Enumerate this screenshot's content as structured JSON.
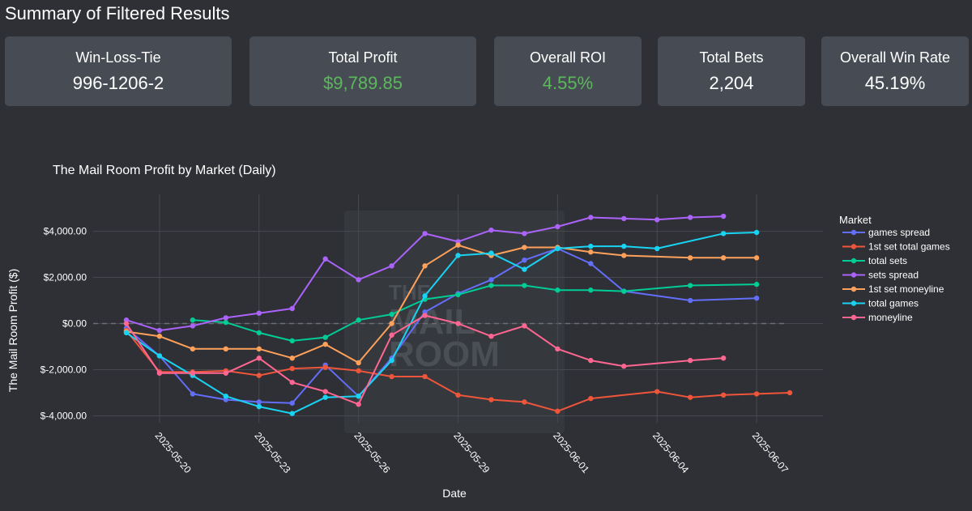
{
  "header": {
    "title": "Summary of Filtered Results"
  },
  "cards": [
    {
      "label": "Win-Loss-Tie",
      "value": "996-1206-2",
      "positive": false
    },
    {
      "label": "Total Profit",
      "value": "$9,789.85",
      "positive": true
    },
    {
      "label": "Overall ROI",
      "value": "4.55%",
      "positive": true
    },
    {
      "label": "Total Bets",
      "value": "2,204",
      "positive": false
    },
    {
      "label": "Overall Win Rate",
      "value": "45.19%",
      "positive": false
    }
  ],
  "colors": {
    "positive": "#5cb85c",
    "card_bg": "#474c54",
    "page_bg": "#2e3035"
  },
  "watermark": {
    "lines": [
      "THE",
      "MAIL",
      "ROOM"
    ]
  },
  "chart_data": {
    "type": "line",
    "title": "The Mail Room Profit by Market (Daily)",
    "xlabel": "Date",
    "ylabel": "The Mail Room Profit ($)",
    "legend_title": "Market",
    "ylim": [
      -4300,
      5600
    ],
    "xlim": [
      "2025-05-18",
      "2025-06-09"
    ],
    "yticks": [
      -4000,
      -2000,
      0,
      2000,
      4000
    ],
    "ytick_labels": [
      "$-4,000.00",
      "$-2,000.00",
      "$0.00",
      "$2,000.00",
      "$4,000.00"
    ],
    "xticks": [
      "2025-05-20",
      "2025-05-23",
      "2025-05-26",
      "2025-05-29",
      "2025-06-01",
      "2025-06-04",
      "2025-06-07"
    ],
    "zero_line": true,
    "series": [
      {
        "name": "games spread",
        "color": "#636efa",
        "x": [
          "2025-05-19",
          "2025-05-20",
          "2025-05-21",
          "2025-05-22",
          "2025-05-23",
          "2025-05-24",
          "2025-05-25",
          "2025-05-26",
          "2025-05-27",
          "2025-05-28",
          "2025-05-29",
          "2025-05-30",
          "2025-05-31",
          "2025-06-01",
          "2025-06-02",
          "2025-06-03",
          "2025-06-05",
          "2025-06-07"
        ],
        "y": [
          -200,
          -1400,
          -3050,
          -3300,
          -3400,
          -3450,
          -1800,
          -3150,
          -1500,
          500,
          1300,
          1900,
          2750,
          3250,
          2600,
          1400,
          1000,
          1100
        ]
      },
      {
        "name": "1st set total games",
        "color": "#ef553b",
        "x": [
          "2025-05-19",
          "2025-05-20",
          "2025-05-21",
          "2025-05-22",
          "2025-05-23",
          "2025-05-24",
          "2025-05-25",
          "2025-05-26",
          "2025-05-27",
          "2025-05-28",
          "2025-05-29",
          "2025-05-30",
          "2025-05-31",
          "2025-06-01",
          "2025-06-02",
          "2025-06-04",
          "2025-06-05",
          "2025-06-06",
          "2025-06-07",
          "2025-06-08"
        ],
        "y": [
          -300,
          -2100,
          -2100,
          -2050,
          -2250,
          -1950,
          -1900,
          -2050,
          -2300,
          -2300,
          -3100,
          -3300,
          -3400,
          -3800,
          -3250,
          -2950,
          -3200,
          -3100,
          -3050,
          -3000
        ]
      },
      {
        "name": "total sets",
        "color": "#00cc96",
        "x": [
          "2025-05-21",
          "2025-05-22",
          "2025-05-23",
          "2025-05-24",
          "2025-05-25",
          "2025-05-26",
          "2025-05-27",
          "2025-05-28",
          "2025-05-29",
          "2025-05-30",
          "2025-05-31",
          "2025-06-01",
          "2025-06-02",
          "2025-06-03",
          "2025-06-05",
          "2025-06-07"
        ],
        "y": [
          150,
          50,
          -400,
          -750,
          -600,
          150,
          400,
          1050,
          1250,
          1650,
          1650,
          1450,
          1450,
          1400,
          1650,
          1700
        ]
      },
      {
        "name": "sets spread",
        "color": "#ab63fa",
        "x": [
          "2025-05-19",
          "2025-05-20",
          "2025-05-21",
          "2025-05-22",
          "2025-05-23",
          "2025-05-24",
          "2025-05-25",
          "2025-05-26",
          "2025-05-27",
          "2025-05-28",
          "2025-05-29",
          "2025-05-30",
          "2025-05-31",
          "2025-06-01",
          "2025-06-02",
          "2025-06-03",
          "2025-06-04",
          "2025-06-05",
          "2025-06-06"
        ],
        "y": [
          150,
          -300,
          -100,
          250,
          450,
          650,
          2800,
          1900,
          2500,
          3900,
          3550,
          4050,
          3900,
          4200,
          4600,
          4550,
          4500,
          4600,
          4650
        ]
      },
      {
        "name": "1st set moneyline",
        "color": "#ffa15a",
        "x": [
          "2025-05-19",
          "2025-05-20",
          "2025-05-21",
          "2025-05-22",
          "2025-05-23",
          "2025-05-24",
          "2025-05-25",
          "2025-05-26",
          "2025-05-27",
          "2025-05-28",
          "2025-05-29",
          "2025-05-30",
          "2025-05-31",
          "2025-06-01",
          "2025-06-02",
          "2025-06-03",
          "2025-06-05",
          "2025-06-06",
          "2025-06-07"
        ],
        "y": [
          -350,
          -550,
          -1100,
          -1100,
          -1100,
          -1500,
          -900,
          -1700,
          0,
          2500,
          3400,
          2950,
          3300,
          3300,
          3100,
          2950,
          2850,
          2850,
          2850
        ]
      },
      {
        "name": "total games",
        "color": "#19d3f3",
        "x": [
          "2025-05-19",
          "2025-05-20",
          "2025-05-21",
          "2025-05-22",
          "2025-05-23",
          "2025-05-24",
          "2025-05-25",
          "2025-05-26",
          "2025-05-27",
          "2025-05-28",
          "2025-05-29",
          "2025-05-30",
          "2025-05-31",
          "2025-06-01",
          "2025-06-02",
          "2025-06-03",
          "2025-06-04",
          "2025-06-06",
          "2025-06-07"
        ],
        "y": [
          -400,
          -1400,
          -2250,
          -3150,
          -3600,
          -3900,
          -3200,
          -3150,
          -1600,
          1200,
          2950,
          3050,
          2350,
          3250,
          3350,
          3350,
          3250,
          3900,
          3950
        ]
      },
      {
        "name": "moneyline",
        "color": "#ff6692",
        "x": [
          "2025-05-19",
          "2025-05-20",
          "2025-05-21",
          "2025-05-22",
          "2025-05-23",
          "2025-05-24",
          "2025-05-25",
          "2025-05-26",
          "2025-05-27",
          "2025-05-28",
          "2025-05-29",
          "2025-05-30",
          "2025-05-31",
          "2025-06-01",
          "2025-06-02",
          "2025-06-03",
          "2025-06-05",
          "2025-06-06"
        ],
        "y": [
          0,
          -2150,
          -2150,
          -2150,
          -1500,
          -2550,
          -2950,
          -3500,
          -500,
          350,
          0,
          -550,
          -100,
          -1100,
          -1600,
          -1850,
          -1600,
          -1500
        ]
      }
    ]
  }
}
